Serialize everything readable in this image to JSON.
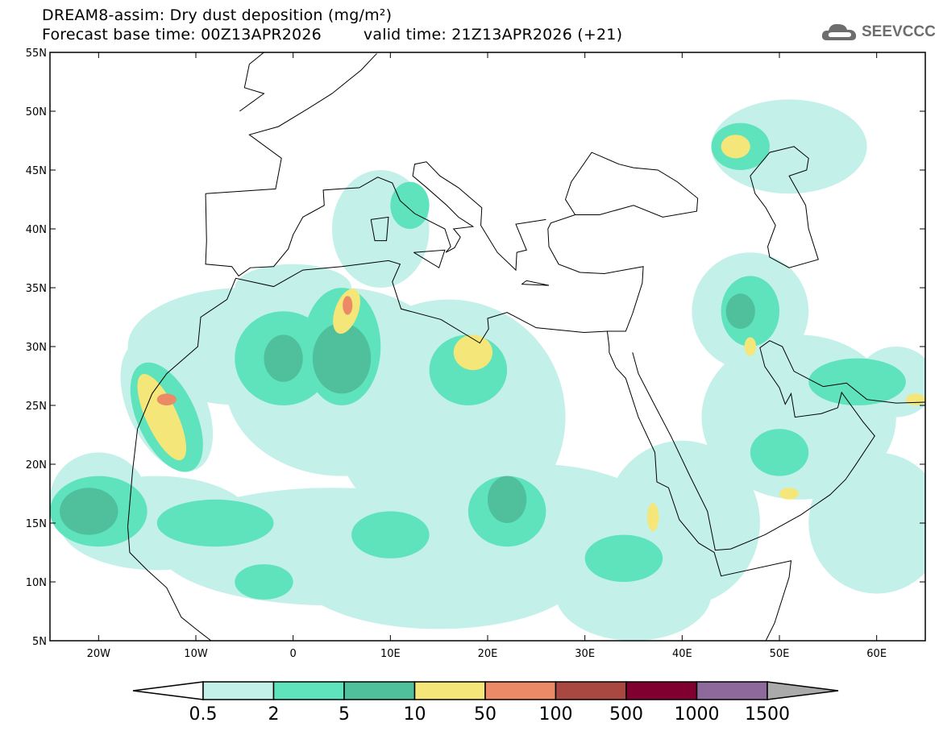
{
  "header": {
    "title": "DREAM8-assim: Dry dust deposition (mg/m²)",
    "base_time": "Forecast base time: 00Z13APR2026",
    "valid_time": "valid time: 21Z13APR2026 (+21)"
  },
  "logo": {
    "text": "SEEVCCC",
    "icon": "cloud-icon"
  },
  "map": {
    "lon_range": [
      -25,
      65
    ],
    "lat_range": [
      5,
      55
    ],
    "lon_ticks": [
      {
        "v": -20,
        "label": "20W"
      },
      {
        "v": -10,
        "label": "10W"
      },
      {
        "v": 0,
        "label": "0"
      },
      {
        "v": 10,
        "label": "10E"
      },
      {
        "v": 20,
        "label": "20E"
      },
      {
        "v": 30,
        "label": "30E"
      },
      {
        "v": 40,
        "label": "40E"
      },
      {
        "v": 50,
        "label": "50E"
      },
      {
        "v": 60,
        "label": "60E"
      }
    ],
    "lat_ticks": [
      {
        "v": 55,
        "label": "55N"
      },
      {
        "v": 50,
        "label": "50N"
      },
      {
        "v": 45,
        "label": "45N"
      },
      {
        "v": 40,
        "label": "40N"
      },
      {
        "v": 35,
        "label": "35N"
      },
      {
        "v": 30,
        "label": "30N"
      },
      {
        "v": 25,
        "label": "25N"
      },
      {
        "v": 20,
        "label": "20N"
      },
      {
        "v": 15,
        "label": "15N"
      },
      {
        "v": 10,
        "label": "10N"
      },
      {
        "v": 5,
        "label": "5N"
      }
    ]
  },
  "colorbar": {
    "labels": [
      "0.5",
      "2",
      "5",
      "10",
      "50",
      "100",
      "500",
      "1000",
      "1500"
    ],
    "colors": [
      "#c4f0ea",
      "#5ee3bd",
      "#50bf9c",
      "#f5e67a",
      "#ea8a67",
      "#a84840",
      "#800030",
      "#8e6a9c"
    ],
    "under_color": "#ffffff",
    "over_color": "#aaaaaa"
  }
}
